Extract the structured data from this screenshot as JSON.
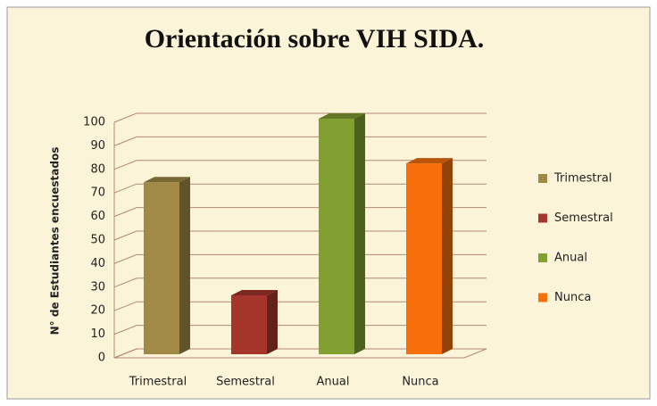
{
  "chart_data": {
    "type": "bar3d",
    "title": "Orientación sobre VIH SIDA.",
    "y_label": "N° de Estudiantes encuestados",
    "categories": [
      "Trimestral",
      "Semestral",
      "Anual",
      "Nunca"
    ],
    "values": [
      73,
      25,
      100,
      81
    ],
    "colors": [
      "#a08a45",
      "#a6352c",
      "#82a032",
      "#f7700c"
    ],
    "ylim": [
      0,
      100
    ],
    "yticks": [
      0,
      10,
      20,
      30,
      40,
      50,
      60,
      70,
      80,
      90,
      100
    ],
    "grid": true,
    "legend": "right"
  }
}
